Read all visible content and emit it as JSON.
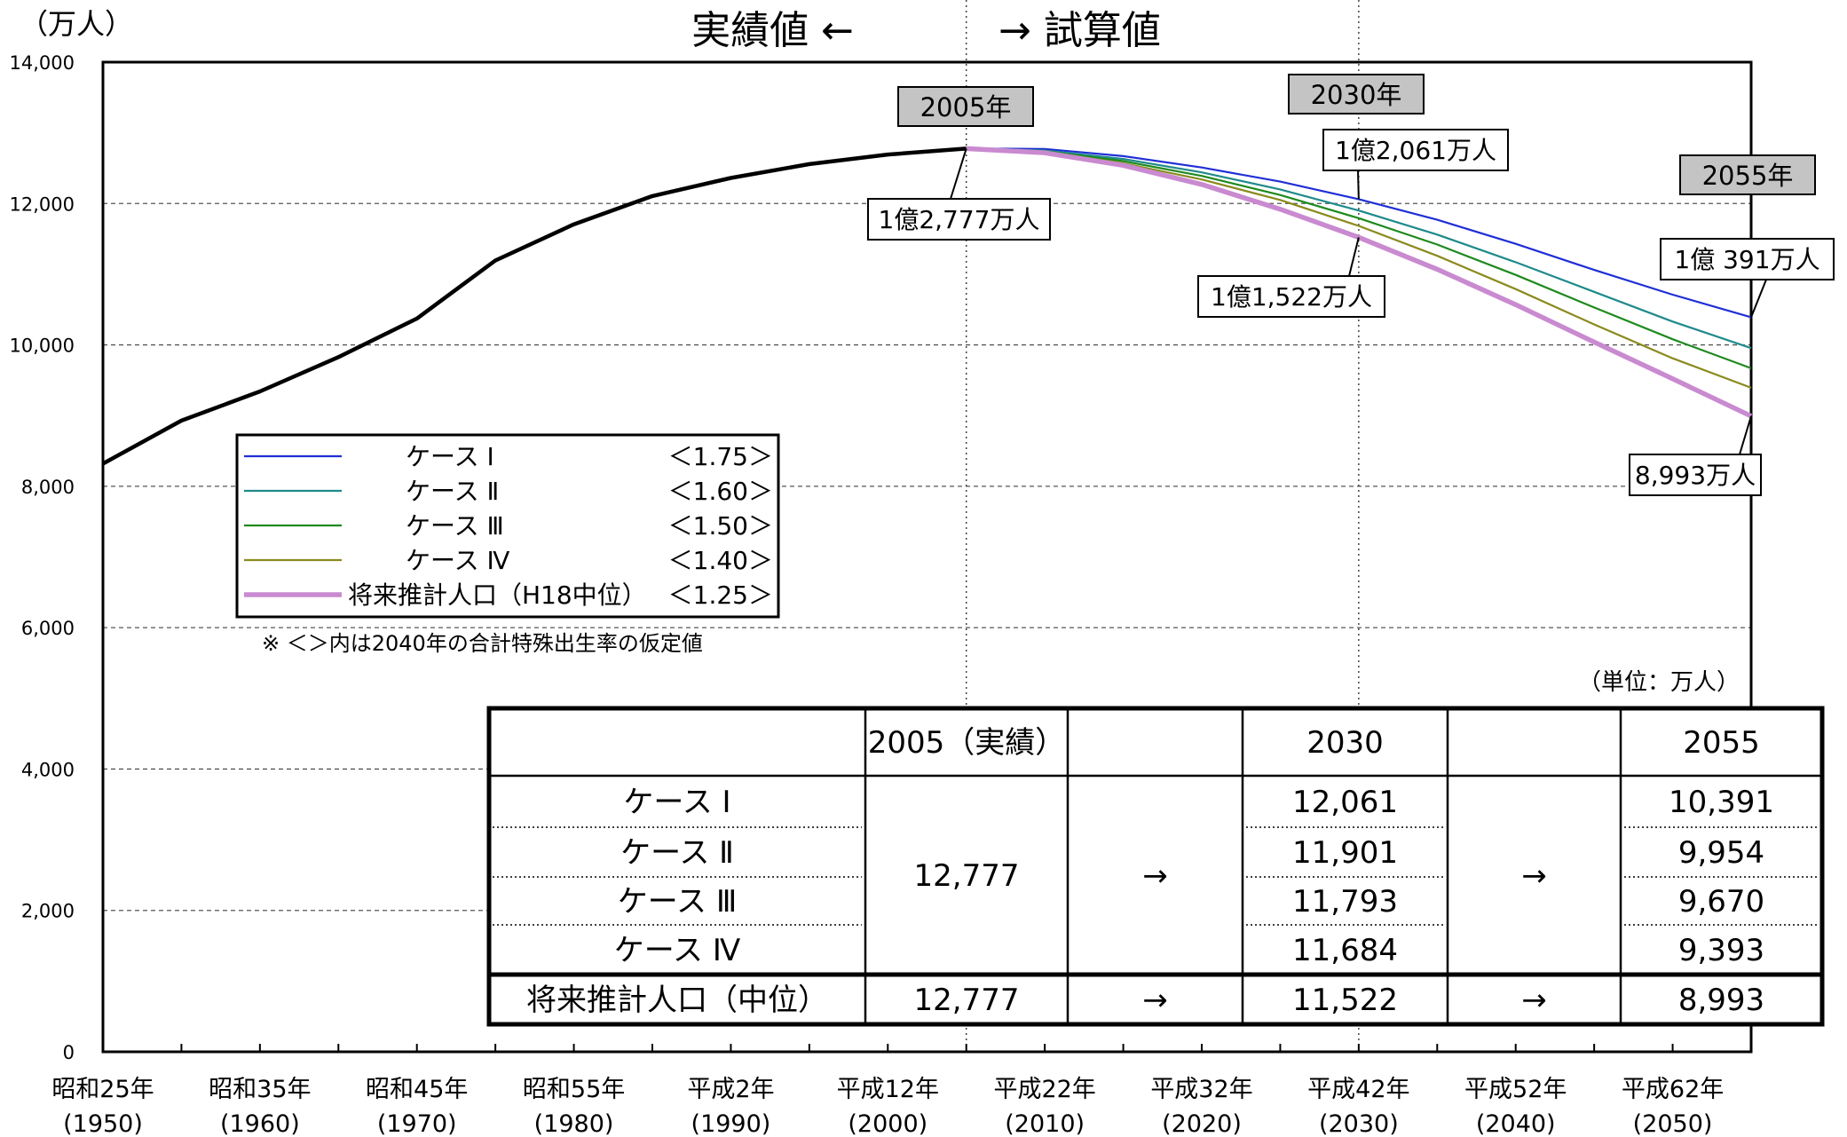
{
  "chart_data": {
    "type": "line",
    "unit_top": "（万人）",
    "header_left": "実績値 ←",
    "header_right": "→ 試算値",
    "ylim": [
      0,
      14000
    ],
    "yticks": [
      0,
      2000,
      4000,
      6000,
      8000,
      10000,
      12000,
      14000
    ],
    "ytick_labels": [
      "0",
      "2,000",
      "4,000",
      "6,000",
      "8,000",
      "10,000",
      "12,000",
      "14,000"
    ],
    "xlim": [
      1950,
      2055
    ],
    "xtick_years": [
      1950,
      1960,
      1970,
      1980,
      1990,
      2000,
      2010,
      2020,
      2030,
      2040,
      2050
    ],
    "xtick_labels": [
      {
        "era": "昭和25年",
        "year": "(1950)"
      },
      {
        "era": "昭和35年",
        "year": "(1960)"
      },
      {
        "era": "昭和45年",
        "year": "(1970)"
      },
      {
        "era": "昭和55年",
        "year": "(1980)"
      },
      {
        "era": "平成2年",
        "year": "(1990)"
      },
      {
        "era": "平成12年",
        "year": "(2000)"
      },
      {
        "era": "平成22年",
        "year": "(2010)"
      },
      {
        "era": "平成32年",
        "year": "(2020)"
      },
      {
        "era": "平成42年",
        "year": "(2030)"
      },
      {
        "era": "平成52年",
        "year": "(2040)"
      },
      {
        "era": "平成62年",
        "year": "(2050)"
      }
    ],
    "series": [
      {
        "key": "actual",
        "color": "#000000",
        "x": [
          1950,
          1955,
          1960,
          1965,
          1970,
          1975,
          1980,
          1985,
          1990,
          1995,
          2000,
          2005
        ],
        "y": [
          8320,
          8928,
          9342,
          9828,
          10372,
          11194,
          11706,
          12105,
          12361,
          12557,
          12693,
          12777
        ]
      },
      {
        "key": "case1",
        "name": "ケース Ⅰ",
        "tfr": "＜1.75＞",
        "color": "#1f2fd6",
        "x": [
          2005,
          2010,
          2015,
          2020,
          2025,
          2030,
          2035,
          2040,
          2045,
          2050,
          2055
        ],
        "y": [
          12777,
          12772,
          12670,
          12510,
          12310,
          12061,
          11770,
          11430,
          11060,
          10710,
          10391
        ]
      },
      {
        "key": "case2",
        "name": "ケース Ⅱ",
        "tfr": "＜1.60＞",
        "color": "#1f8a8a",
        "x": [
          2005,
          2010,
          2015,
          2020,
          2025,
          2030,
          2035,
          2040,
          2045,
          2050,
          2055
        ],
        "y": [
          12777,
          12750,
          12630,
          12440,
          12200,
          11901,
          11560,
          11170,
          10750,
          10330,
          9954
        ]
      },
      {
        "key": "case3",
        "name": "ケース Ⅲ",
        "tfr": "＜1.50＞",
        "color": "#1e8a1e",
        "x": [
          2005,
          2010,
          2015,
          2020,
          2025,
          2030,
          2035,
          2040,
          2045,
          2050,
          2055
        ],
        "y": [
          12777,
          12740,
          12600,
          12390,
          12120,
          11793,
          11420,
          10990,
          10530,
          10080,
          9670
        ]
      },
      {
        "key": "case4",
        "name": "ケース Ⅳ",
        "tfr": "＜1.40＞",
        "color": "#8a8a1e",
        "x": [
          2005,
          2010,
          2015,
          2020,
          2025,
          2030,
          2035,
          2040,
          2045,
          2050,
          2055
        ],
        "y": [
          12777,
          12730,
          12570,
          12340,
          12050,
          11684,
          11260,
          10790,
          10290,
          9810,
          9393
        ]
      },
      {
        "key": "base",
        "name": "将来推計人口（H18中位）",
        "tfr": "＜1.25＞",
        "color": "#c98ad0",
        "x": [
          2005,
          2010,
          2015,
          2020,
          2025,
          2030,
          2035,
          2040,
          2045,
          2050,
          2055
        ],
        "y": [
          12777,
          12718,
          12540,
          12270,
          11920,
          11522,
          11070,
          10570,
          10040,
          9520,
          8993
        ]
      }
    ],
    "legend_note": "※ ＜＞内は2040年の合計特殊出生率の仮定値",
    "year_tags": [
      {
        "year": 2005,
        "label": "2005年"
      },
      {
        "year": 2030,
        "label": "2030年"
      },
      {
        "year": 2055,
        "label": "2055年"
      }
    ],
    "callouts": [
      {
        "label": "1億2,777万人",
        "x": 2005,
        "y": 12777
      },
      {
        "label": "1億2,061万人",
        "x": 2030,
        "y": 12061
      },
      {
        "label": "1億1,522万人",
        "x": 2030,
        "y": 11522
      },
      {
        "label": "1億  391万人",
        "x": 2055,
        "y": 10391
      },
      {
        "label": "8,993万人",
        "x": 2055,
        "y": 8993
      }
    ],
    "table": {
      "unit": "（単位：万人）",
      "headers": [
        "",
        "2005（実績）",
        "",
        "2030",
        "",
        "2055"
      ],
      "rows": [
        {
          "label": "ケース Ⅰ",
          "y2030": "12,061",
          "y2055": "10,391"
        },
        {
          "label": "ケース Ⅱ",
          "y2030": "11,901",
          "y2055": "9,954"
        },
        {
          "label": "ケース Ⅲ",
          "y2030": "11,793",
          "y2055": "9,670"
        },
        {
          "label": "ケース Ⅳ",
          "y2030": "11,684",
          "y2055": "9,393"
        }
      ],
      "cases_2005": "12,777",
      "arrow": "→",
      "base_row": {
        "label": "将来推計人口（中位）",
        "y2005": "12,777",
        "arrow1": "→",
        "y2030": "11,522",
        "arrow2": "→",
        "y2055": "8,993"
      }
    }
  }
}
